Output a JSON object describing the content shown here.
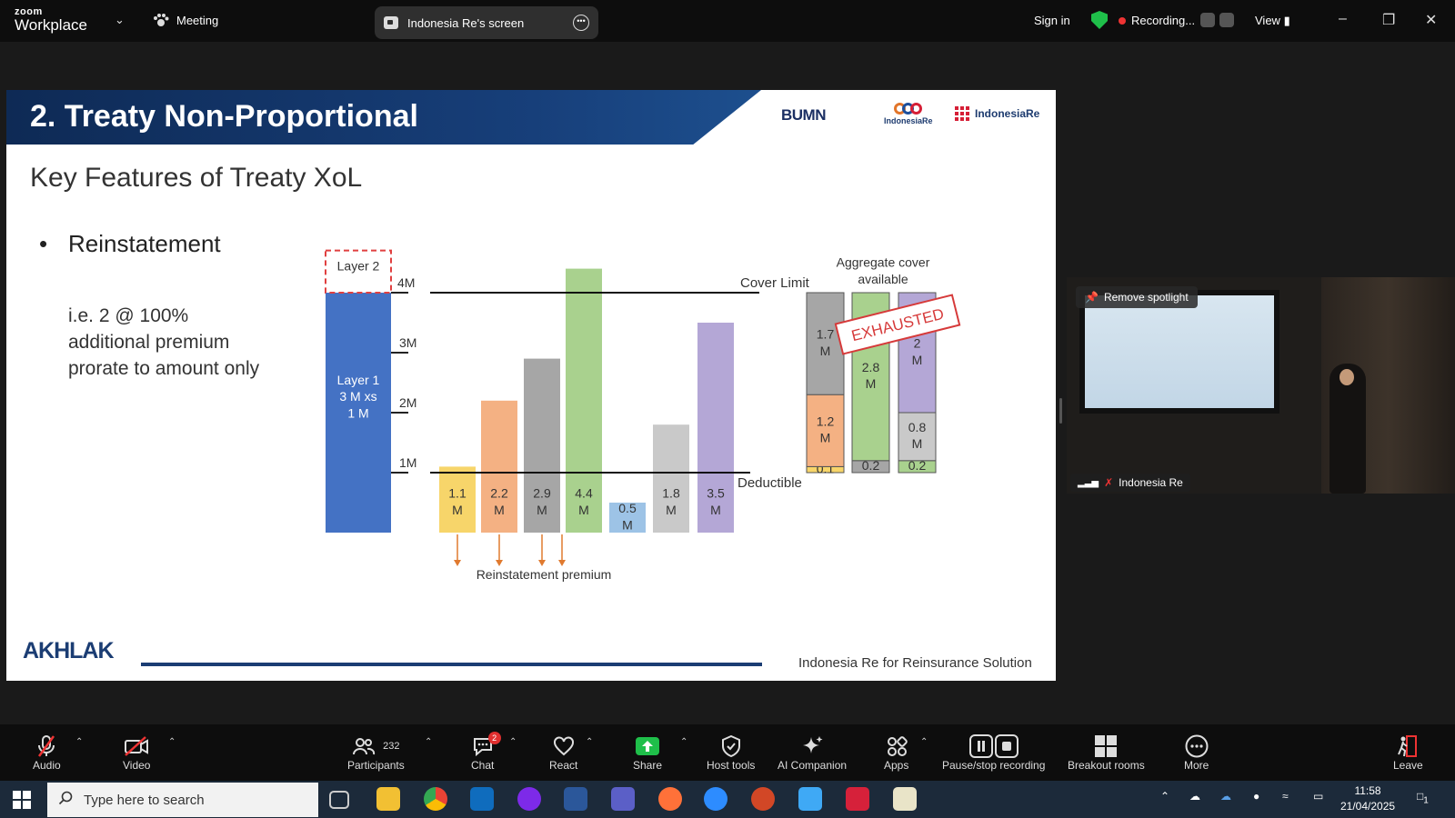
{
  "app": {
    "brand_top": "zoom",
    "brand_bottom": "Workplace",
    "meeting_label": "Meeting",
    "screen_share_label": "Indonesia Re's screen",
    "signin": "Sign in",
    "recording_label": "Recording...",
    "view_label": "View"
  },
  "slide": {
    "title": "2. Treaty Non-Proportional",
    "logo_bumn": "BUMN",
    "logo_ire": "IndonesiaRe",
    "logo_institute": "IndonesiaRe",
    "subtitle": "Key Features of Treaty XoL",
    "bullet": "Reinstatement",
    "note": [
      "i.e. 2 @ 100%",
      "additional premium",
      "prorate to amount only"
    ],
    "footer_logo": "AKHLAK",
    "footer_text": "Indonesia Re for Reinsurance Solution",
    "chart_data": {
      "type": "bar",
      "y_axis_ticks": [
        "1M",
        "2M",
        "3M",
        "4M"
      ],
      "ylim": [
        0,
        4.4
      ],
      "deductible": 1,
      "cover_limit": 4,
      "layers": [
        {
          "name": "Layer 2",
          "from": 4,
          "to": 4.4
        },
        {
          "name": "Layer 1\n3 M xs\n1 M",
          "from": 0,
          "to": 4
        }
      ],
      "losses": [
        {
          "label": "1.1\nM",
          "value": 1.1,
          "color": "#f7d56a",
          "reinstatement": true
        },
        {
          "label": "2.2\nM",
          "value": 2.2,
          "color": "#f4b183",
          "reinstatement": true
        },
        {
          "label": "2.9\nM",
          "value": 2.9,
          "color": "#a6a6a6",
          "reinstatement": true
        },
        {
          "label": "4.4\nM",
          "value": 4.4,
          "color": "#a9d18e",
          "reinstatement": true
        },
        {
          "label": "0.5\nM",
          "value": 0.5,
          "color": "#9dc3e6",
          "reinstatement": false
        },
        {
          "label": "1.8\nM",
          "value": 1.8,
          "color": "#c9c9c9",
          "reinstatement": false
        },
        {
          "label": "3.5\nM",
          "value": 3.5,
          "color": "#b4a7d6",
          "reinstatement": false
        }
      ],
      "annotations": {
        "cover_limit": "Cover Limit",
        "deductible": "Deductible",
        "reinstatement_premium": "Reinstatement premium",
        "aggregate": "Aggregate cover\navailable",
        "exhausted": "EXHAUSTED"
      },
      "aggregate_bars": [
        {
          "segments": [
            {
              "label": "0.1",
              "value": 0.1,
              "color": "#f7d56a"
            },
            {
              "label": "1.2\nM",
              "value": 1.2,
              "color": "#f4b183"
            },
            {
              "label": "1.7\nM",
              "value": 1.7,
              "color": "#a6a6a6"
            }
          ]
        },
        {
          "segments": [
            {
              "label": "0.2",
              "value": 0.2,
              "color": "#a6a6a6"
            },
            {
              "label": "2.8\nM",
              "value": 2.8,
              "color": "#a9d18e"
            }
          ]
        },
        {
          "segments": [
            {
              "label": "0.2",
              "value": 0.2,
              "color": "#a9d18e"
            },
            {
              "label": "0.8\nM",
              "value": 0.8,
              "color": "#c9c9c9"
            },
            {
              "label": "2\nM",
              "value": 2,
              "color": "#b4a7d6"
            }
          ]
        }
      ]
    }
  },
  "video": {
    "spotlight": "Remove spotlight",
    "participant": "Indonesia Re"
  },
  "toolbar": {
    "audio": "Audio",
    "video": "Video",
    "participants": "Participants",
    "participants_count": "232",
    "chat": "Chat",
    "chat_badge": "2",
    "react": "React",
    "share": "Share",
    "host_tools": "Host tools",
    "ai_companion": "AI Companion",
    "apps": "Apps",
    "pause_stop": "Pause/stop recording",
    "breakout": "Breakout rooms",
    "more": "More",
    "leave": "Leave"
  },
  "taskbar": {
    "search_placeholder": "Type here to search",
    "time": "11:58",
    "date": "21/04/2025",
    "notif_count": "1"
  }
}
